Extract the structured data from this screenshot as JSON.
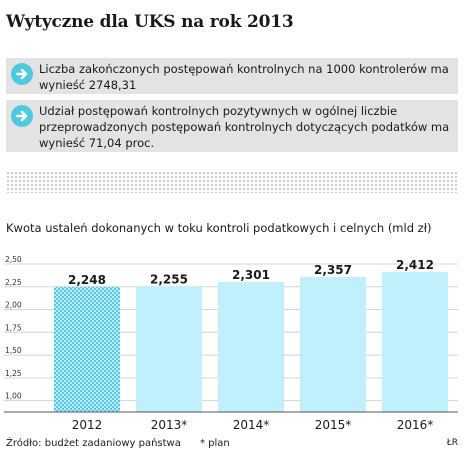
{
  "header": {
    "title": "Wytyczne dla UKS na rok 2013"
  },
  "guidelines": [
    {
      "text": "Liczba zakończonych postępowań kontrolnych na 1000 kontrolerów ma wynieść 2748,31"
    },
    {
      "text": "Udział postępowań kontrolnych pozytywnych w ogólnej liczbie przeprowadzonych postępowań kontrolnych dotyczących podatków ma wynieść 71,04 proc."
    }
  ],
  "icons": {
    "guideline_icon": "arrow-right-icon"
  },
  "colors": {
    "bar": "#bff0fb",
    "bar_highlight": "#b9ecf7",
    "bar_hatch": "#56c7de",
    "accent": "#4fc9e0",
    "panel": "#e3e3e3",
    "grid": "#d4d4d4"
  },
  "chart_data": {
    "type": "bar",
    "title": "Kwota ustaleń dokonanych w toku kontroli podatkowych i celnych (mld zł)",
    "categories": [
      "2012",
      "2013*",
      "2014*",
      "2015*",
      "2016*"
    ],
    "values": [
      2.248,
      2.255,
      2.301,
      2.357,
      2.412
    ],
    "value_labels": [
      "2,248",
      "2,255",
      "2,301",
      "2,357",
      "2,412"
    ],
    "yticks": [
      "2,50",
      "2,25",
      "2,00",
      "1,75",
      "1,50",
      "1,25",
      "1,00"
    ],
    "ytick_values": [
      2.5,
      2.25,
      2.0,
      1.75,
      1.5,
      1.25,
      1.0
    ],
    "ylim": [
      0.875,
      2.5
    ],
    "grid": true,
    "patterned_bar_index": 0
  },
  "footer": {
    "source": "Źródło: budżet zadaniowy państwa",
    "plan_note": "* plan",
    "credit": "ŁR"
  }
}
